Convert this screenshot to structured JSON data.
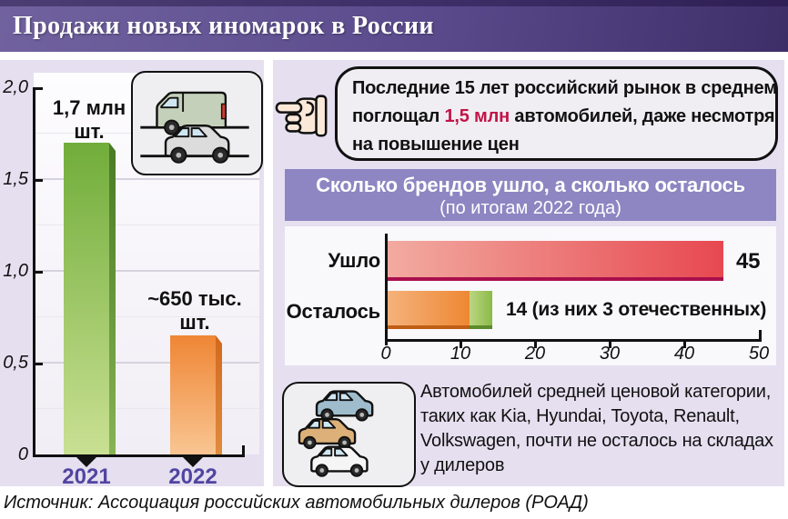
{
  "header": {
    "title": "Продажи новых иномарок в России"
  },
  "callout": {
    "line1": "Последние 15 лет российский рынок в среднем",
    "line2_before": "поглощал ",
    "line2_highlight": "1,5 млн",
    "line2_after": " автомобилей, даже несмотря",
    "line3": "на повышение цен"
  },
  "note": {
    "text": "Автомобилей средней ценовой категории, таких как Kia, Hyundai, Toyota, Renault, Volkswagen, почти не осталось на складах у дилеров"
  },
  "source": "Источник: Ассоциация российских автомобильных дилеров (РОАД)",
  "icons": {
    "hand": "pointing-hand-left",
    "left_panel": "van-and-car-on-road",
    "note_panel": "three-stacked-cars"
  },
  "accent_colors": {
    "title_bar_purple": "#5a4a8c",
    "panel_lavender": "#e5dff0",
    "banner_purple": "#8d86c2",
    "year_label_purple": "#5145a0",
    "highlight_crimson": "#c21448",
    "bar_green": "#71ad3a",
    "bar_orange": "#ee8833",
    "bar_red": "#e74850",
    "domestic_green": "#8aba47"
  },
  "chart_data": [
    {
      "type": "bar",
      "title": "Продажи новых иномарок в России",
      "categories": [
        "2021",
        "2022"
      ],
      "values": [
        1.7,
        0.65
      ],
      "unit": "млн шт.",
      "value_labels": [
        [
          "1,7 млн",
          "шт."
        ],
        [
          "~650 тыс.",
          "шт."
        ]
      ],
      "xlabel": "",
      "ylabel": "",
      "ylim": [
        0,
        2
      ],
      "y_ticks": [
        "2,0",
        "1,5",
        "1,0",
        "0,5",
        "0"
      ],
      "grid": true,
      "bar_colors": [
        "#71ad3a",
        "#ef8635"
      ]
    },
    {
      "type": "bar-horizontal-stacked",
      "title": "Сколько брендов ушло, а сколько осталось",
      "subtitle": "(по итогам 2022 года)",
      "rows": [
        {
          "label": "Ушло",
          "total": 45,
          "value_label": "45",
          "segments": [
            {
              "value": 45,
              "color": "#e74850"
            }
          ]
        },
        {
          "label": "Осталось",
          "total": 14,
          "value_label": "14 (из них 3 отечественных)",
          "segments": [
            {
              "value": 11,
              "color": "#ee8833"
            },
            {
              "value": 3,
              "color": "#8aba47"
            }
          ]
        }
      ],
      "xlim": [
        0,
        50
      ],
      "x_ticks": [
        "0",
        "10",
        "20",
        "30",
        "40",
        "50"
      ],
      "grid": false,
      "legend": "none"
    }
  ]
}
